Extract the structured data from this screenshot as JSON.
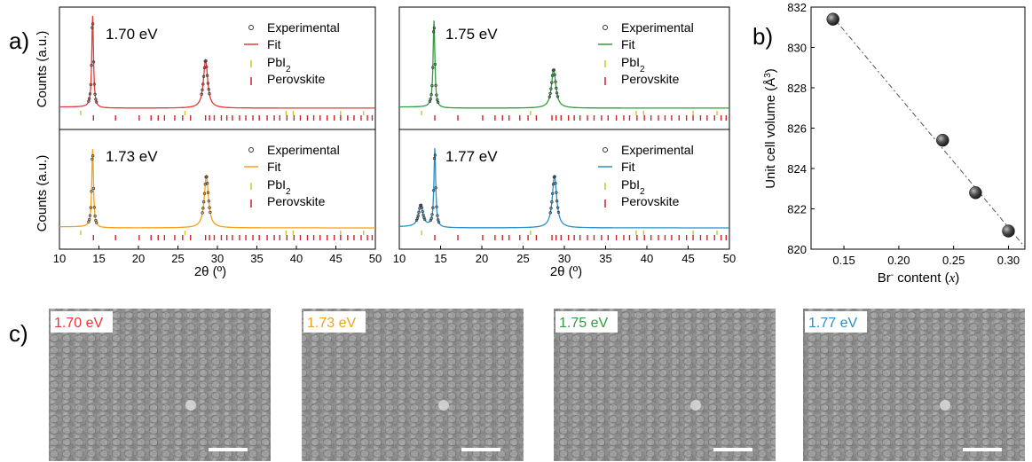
{
  "panel_labels": {
    "a": "a)",
    "b": "b)",
    "c": "c)"
  },
  "colors": {
    "exp": "#333333",
    "fit_170": "#e53935",
    "fit_173": "#f5a01a",
    "fit_175": "#2e9e3e",
    "fit_177": "#2a8fc8",
    "pbi2": "#c8c820",
    "perovskite": "#d0202a"
  },
  "xrd": {
    "ylabel": "Counts (a.u.)",
    "xlabel": "2θ (º)",
    "xticks": [
      "10",
      "15",
      "20",
      "25",
      "30",
      "35",
      "40",
      "45",
      "50"
    ],
    "legend": {
      "experimental": "Experimental",
      "fit": "Fit",
      "pbi2": "PbI",
      "pbi2_sub": "2",
      "perovskite": "Perovskite"
    },
    "panels": [
      {
        "label": "1.70 eV"
      },
      {
        "label": "1.75 eV"
      },
      {
        "label": "1.73 eV"
      },
      {
        "label": "1.77 eV"
      }
    ]
  },
  "chart_data": [
    {
      "type": "line",
      "title": "",
      "xlabel": "2θ (º)",
      "ylabel": "Counts (a.u.)",
      "xlim": [
        10,
        50
      ],
      "series": [
        {
          "name": "1.70 eV",
          "peaks": [
            {
              "x": 14.2,
              "height": 1.0
            },
            {
              "x": 28.5,
              "height": 0.52
            }
          ]
        },
        {
          "name": "1.75 eV",
          "peaks": [
            {
              "x": 14.2,
              "height": 0.95
            },
            {
              "x": 28.7,
              "height": 0.42
            }
          ]
        },
        {
          "name": "1.73 eV",
          "peaks": [
            {
              "x": 14.2,
              "height": 0.88
            },
            {
              "x": 28.6,
              "height": 0.58
            }
          ]
        },
        {
          "name": "1.77 eV",
          "peaks": [
            {
              "x": 12.6,
              "height": 0.24
            },
            {
              "x": 14.3,
              "height": 0.88
            },
            {
              "x": 28.8,
              "height": 0.58
            }
          ]
        }
      ]
    },
    {
      "type": "scatter",
      "title": "",
      "xlabel": "Br⁻ content (x)",
      "ylabel": "Unit cell volume (Å³)",
      "xlim": [
        0.12,
        0.315
      ],
      "ylim": [
        820,
        832
      ],
      "xticks": [
        "0.15",
        "0.20",
        "0.25",
        "0.30"
      ],
      "yticks": [
        "820",
        "822",
        "824",
        "826",
        "828",
        "830",
        "832"
      ],
      "x": [
        0.14,
        0.24,
        0.27,
        0.3
      ],
      "y": [
        831.4,
        825.4,
        822.8,
        820.9
      ],
      "fit_line": [
        [
          0.14,
          831.5
        ],
        [
          0.315,
          820.1
        ]
      ]
    }
  ],
  "b_axis": {
    "xlabel_prefix": "Br",
    "xlabel_sup": "-",
    "xlabel_mid": " content (",
    "xlabel_var": "x",
    "xlabel_end": ")",
    "ylabel_prefix": "Unit cell volume (Å",
    "ylabel_sup": "3",
    "ylabel_end": ")"
  },
  "sem": [
    {
      "label": "1.70 eV",
      "color": "#e53935"
    },
    {
      "label": "1.73 eV",
      "color": "#f5a01a"
    },
    {
      "label": "1.75 eV",
      "color": "#2e9e3e"
    },
    {
      "label": "1.77 eV",
      "color": "#2a8fc8"
    }
  ]
}
